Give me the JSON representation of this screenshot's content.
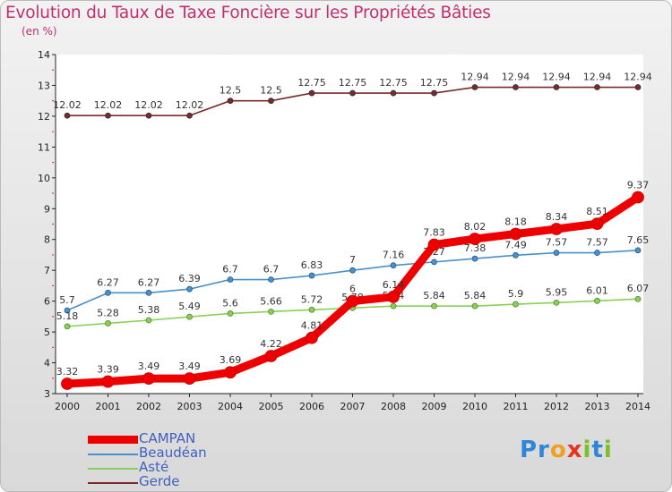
{
  "chart_data": {
    "type": "line",
    "title": "Evolution du Taux de Taxe Foncière sur les Propriétés Bâties",
    "subtitle": "(en %)",
    "xlabel": "",
    "ylabel": "",
    "ylim": [
      3,
      14
    ],
    "yticks": [
      "3",
      "4",
      "5",
      "6",
      "7",
      "8",
      "9",
      "10",
      "11",
      "12",
      "13",
      "14"
    ],
    "categories": [
      "2000",
      "2001",
      "2002",
      "2003",
      "2004",
      "2005",
      "2006",
      "2007",
      "2008",
      "2009",
      "2010",
      "2011",
      "2012",
      "2013",
      "2014"
    ],
    "series": [
      {
        "name": "Gerde",
        "color": "#7a2a2a",
        "values": [
          12.02,
          12.02,
          12.02,
          12.02,
          12.5,
          12.5,
          12.75,
          12.75,
          12.75,
          12.75,
          12.94,
          12.94,
          12.94,
          12.94,
          12.94
        ],
        "labels": [
          "12.02",
          "12.02",
          "12.02",
          "12.02",
          "12.5",
          "12.5",
          "12.75",
          "12.75",
          "12.75",
          "12.75",
          "12.94",
          "12.94",
          "12.94",
          "12.94",
          "12.94"
        ]
      },
      {
        "name": "Beaudéan",
        "color": "#4a90c8",
        "values": [
          5.7,
          6.27,
          6.27,
          6.39,
          6.7,
          6.7,
          6.83,
          7.0,
          7.16,
          7.27,
          7.38,
          7.49,
          7.57,
          7.57,
          7.65
        ],
        "labels": [
          "5.7",
          "6.27",
          "6.27",
          "6.39",
          "6.7",
          "6.7",
          "6.83",
          "7",
          "7.16",
          "7.27",
          "7.38",
          "7.49",
          "7.57",
          "7.57",
          "7.65"
        ]
      },
      {
        "name": "Asté",
        "color": "#88d058",
        "values": [
          5.18,
          5.28,
          5.38,
          5.49,
          5.6,
          5.66,
          5.72,
          5.78,
          5.84,
          5.84,
          5.84,
          5.9,
          5.95,
          6.01,
          6.07
        ],
        "labels": [
          "5.18",
          "5.28",
          "5.38",
          "5.49",
          "5.6",
          "5.66",
          "5.72",
          "5.78",
          "5.84",
          "5.84",
          "5.84",
          "5.9",
          "5.95",
          "6.01",
          "6.07"
        ]
      },
      {
        "name": "CAMPAN",
        "color": "#ee0000",
        "values": [
          3.32,
          3.39,
          3.49,
          3.49,
          3.69,
          4.22,
          4.81,
          6.0,
          6.14,
          7.83,
          8.02,
          8.18,
          8.34,
          8.51,
          9.37
        ],
        "labels": [
          "3.32",
          "3.39",
          "3.49",
          "3.49",
          "3.69",
          "4.22",
          "4.81",
          "6",
          "6.14",
          "7.83",
          "8.02",
          "8.18",
          "8.34",
          "8.51",
          "9.37"
        ]
      }
    ],
    "legend_order": [
      "CAMPAN",
      "Beaudéan",
      "Asté",
      "Gerde"
    ],
    "legend_position": "bottom-left"
  },
  "logo": {
    "p1": "Pr",
    "p2": "o",
    "p3": "x",
    "p4": "i",
    "p5": "t",
    "p6": "i"
  }
}
